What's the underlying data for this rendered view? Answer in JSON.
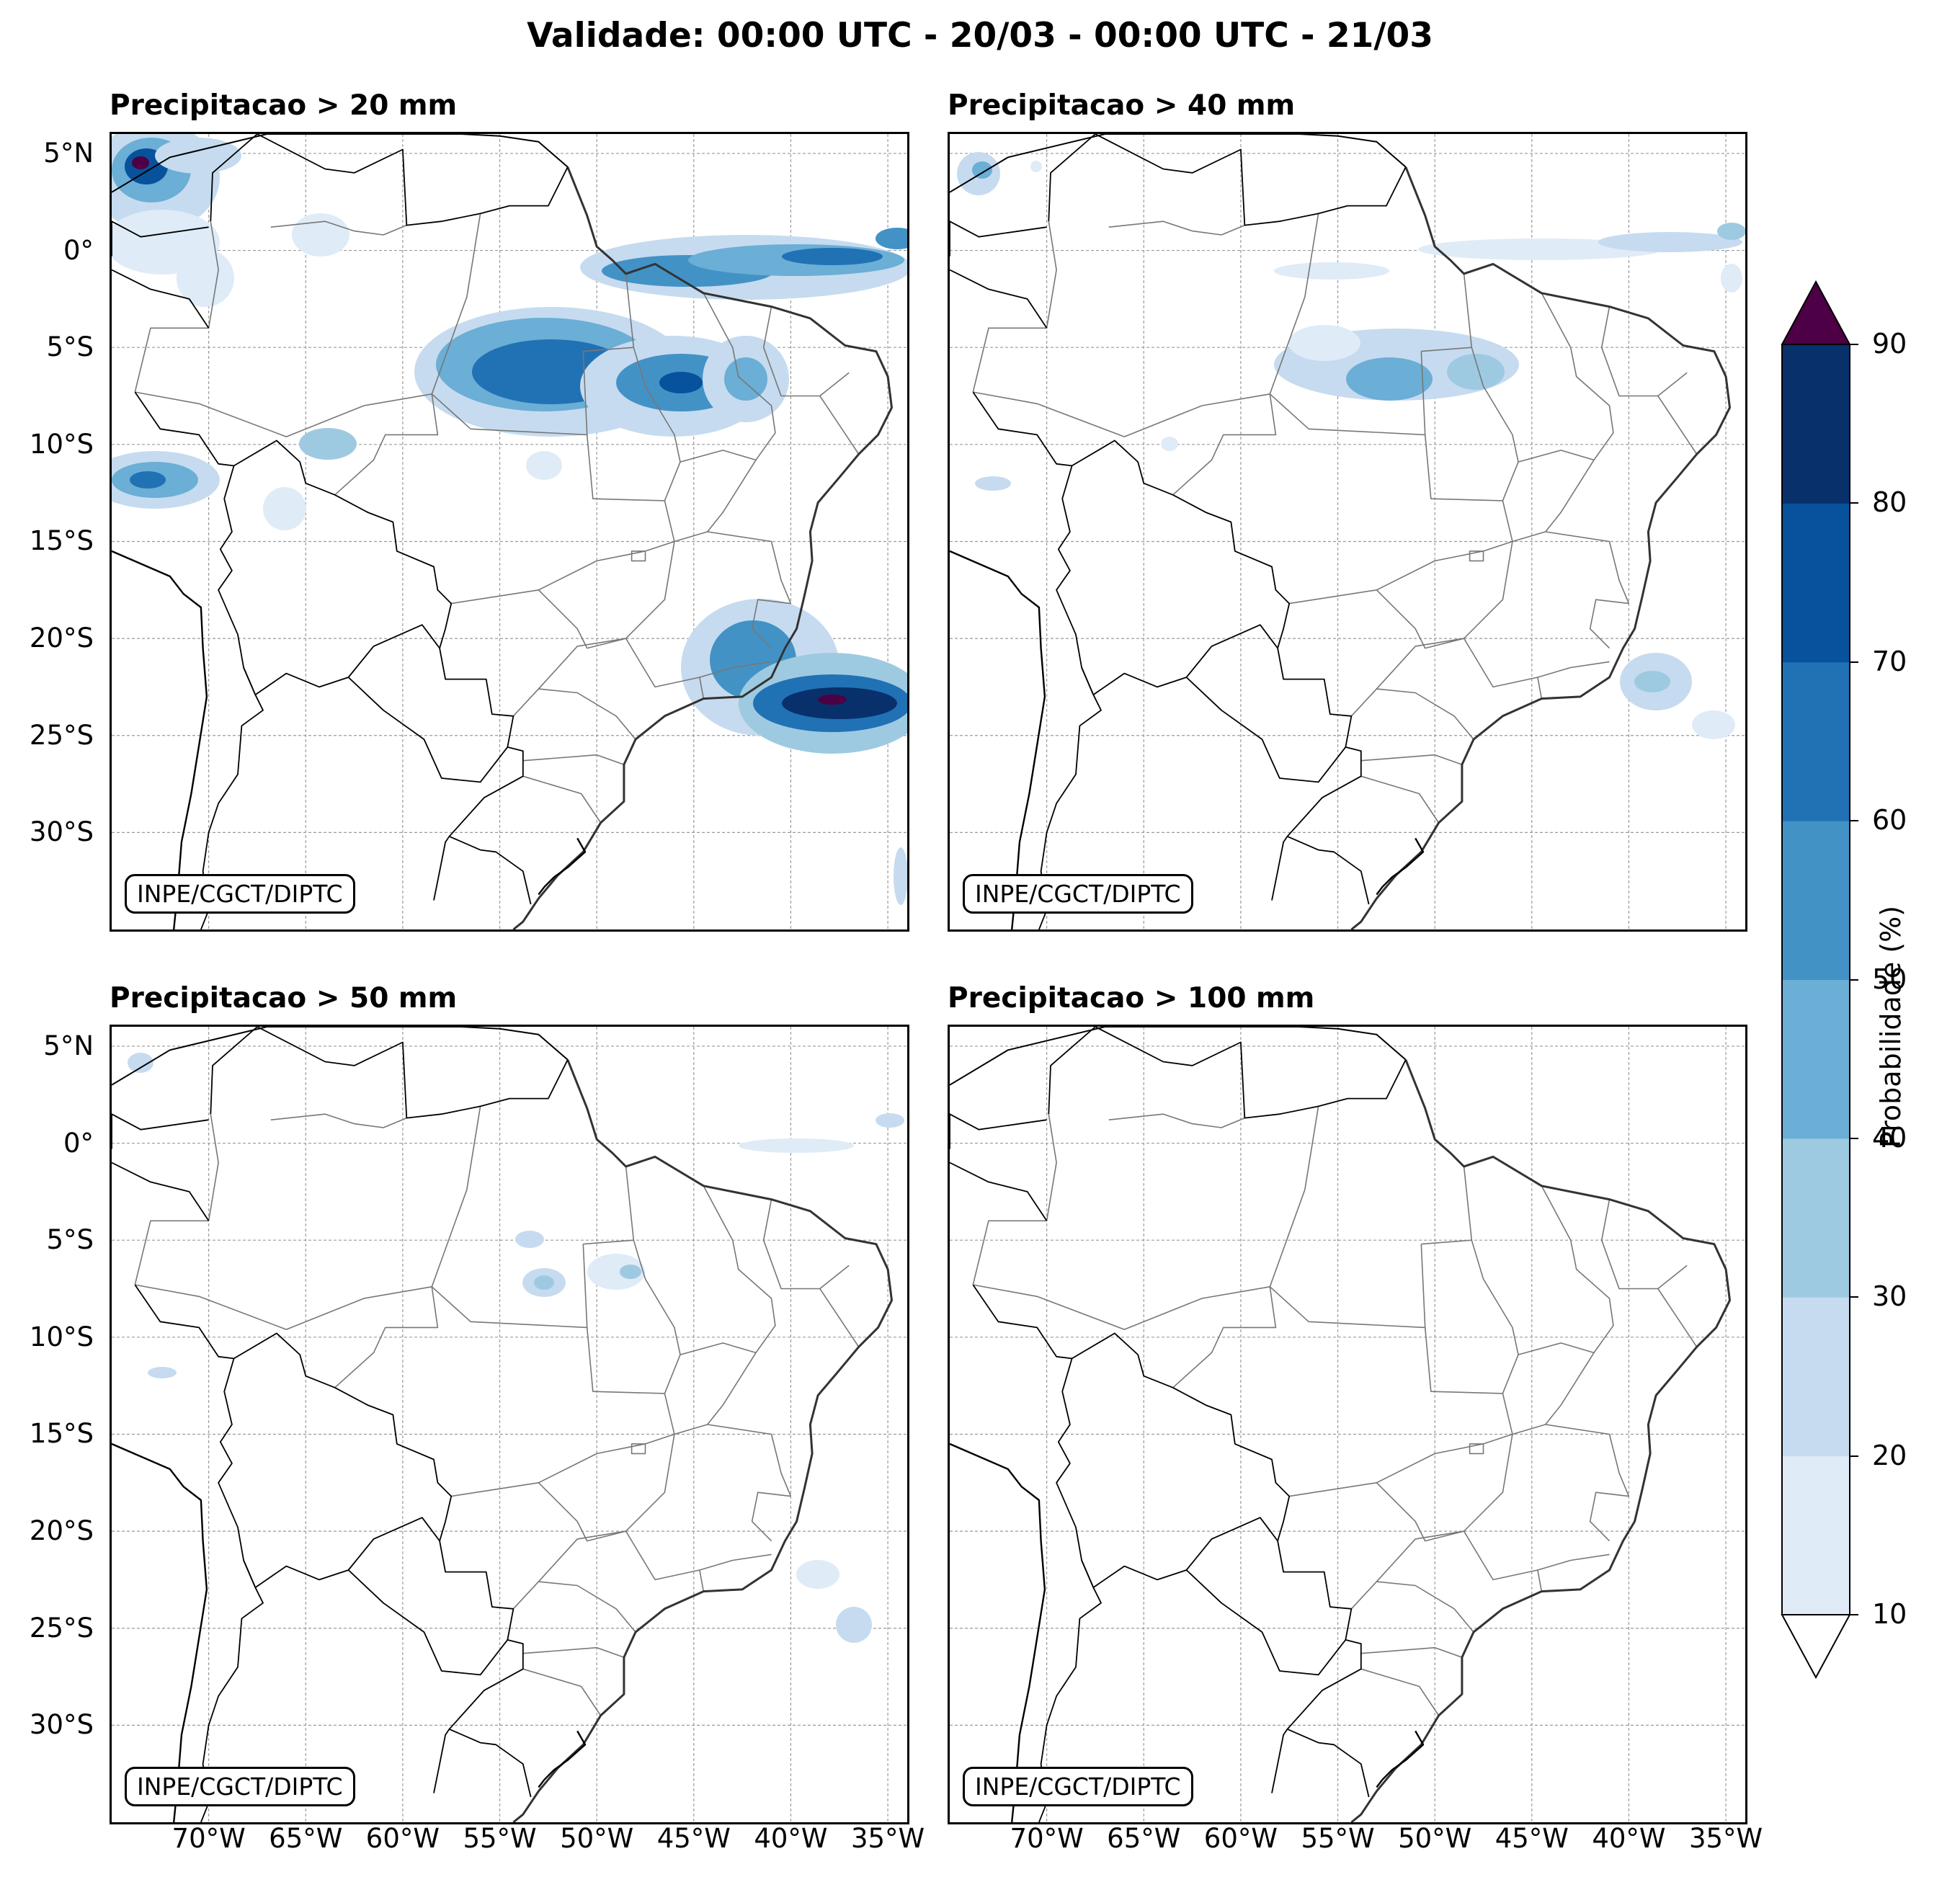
{
  "title": "Validade: 00:00 UTC - 20/03 - 00:00 UTC - 21/03",
  "credit": "INPE/CGCT/DIPTC",
  "panels": [
    {
      "title": "Precipitacao > 20 mm"
    },
    {
      "title": "Precipitacao > 40 mm"
    },
    {
      "title": "Precipitacao > 50 mm"
    },
    {
      "title": "Precipitacao > 100 mm"
    }
  ],
  "lat_labels": [
    "5°N",
    "0°",
    "5°S",
    "10°S",
    "15°S",
    "20°S",
    "25°S",
    "30°S"
  ],
  "lon_labels": [
    "70°W",
    "65°W",
    "60°W",
    "55°W",
    "50°W",
    "45°W",
    "40°W",
    "35°W"
  ],
  "colorbar": {
    "label": "Probabilidade (%)",
    "ticks": [
      "10",
      "20",
      "30",
      "40",
      "50",
      "60",
      "70",
      "80",
      "90"
    ],
    "colors": [
      "#dfebf7",
      "#c6dbef",
      "#9ecae1",
      "#6baed6",
      "#4292c6",
      "#2171b5",
      "#08519c",
      "#08306b"
    ],
    "over_color": "#4d0046",
    "under_color": "#ffffff"
  },
  "map_colors": {
    "coast": "#000000",
    "states": "#777777",
    "grid": "#9a9a9a"
  }
}
